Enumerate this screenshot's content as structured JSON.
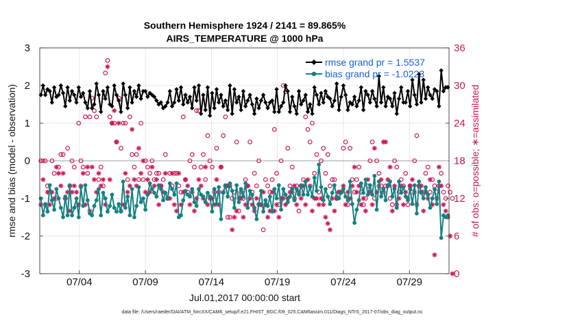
{
  "chart_data": {
    "type": "line",
    "title_line1": "Southern Hemisphere 1924 / 2141 = 89.865%",
    "title_line2": "AIRS_TEMPERATURE @ 1000 hPa",
    "xlabel": "Jul.01,2017 00:00:00 start",
    "ylabel_left": "rmse and bias (model - observation)",
    "ylabel_right": "# of obs: o=possible; ∗=assimilated",
    "ylim_left": [
      -3,
      3
    ],
    "ylim_right": [
      0,
      36
    ],
    "xlim_days": [
      1.0,
      32.0
    ],
    "yticks_left": [
      "-3",
      "-2",
      "-1",
      "0",
      "1",
      "2",
      "3"
    ],
    "yticks_right": [
      "0",
      "6",
      "12",
      "18",
      "24",
      "30",
      "36"
    ],
    "xtick_labels": [
      "07/04",
      "07/09",
      "07/14",
      "07/19",
      "07/24",
      "07/29"
    ],
    "xtick_days": [
      4,
      9,
      14,
      19,
      24,
      29
    ],
    "legend": [
      "rmse grand pr = 1.5537",
      "bias grand pr = -1.0223"
    ],
    "footer": "data file: /Users/raeder/DAI/ATM_forcXX/CAM6_setup/f.e21.FHIST_BGC.f09_025.CAM6assim.011/Diags_NTrS_2017-07/obs_diag_output.nc",
    "colors": {
      "rmse": "#000000",
      "bias": "#128282",
      "obs": "#cc1b5a",
      "zero_line": "#bdbdbd",
      "grid": "#ead6db"
    },
    "series": [
      {
        "name": "rmse",
        "values": [
          1.75,
          2.0,
          1.75,
          1.9,
          1.85,
          1.55,
          1.95,
          1.7,
          1.75,
          2.0,
          1.8,
          1.45,
          1.95,
          1.6,
          1.85,
          1.75,
          1.55,
          1.95,
          1.7,
          1.8,
          1.55,
          1.4,
          1.85,
          1.4,
          1.5,
          2.05,
          1.75,
          1.3,
          1.85,
          1.65,
          1.95,
          1.5,
          1.45,
          2.0,
          1.75,
          1.6,
          1.3,
          2.05,
          1.75,
          1.4,
          1.95,
          1.55,
          1.85,
          1.7,
          2.0,
          1.65,
          1.85,
          1.85,
          1.7,
          1.8,
          1.75,
          1.7,
          1.6,
          1.5,
          1.55,
          1.4,
          1.45,
          1.55,
          1.85,
          1.45,
          1.55,
          1.9,
          1.6,
          1.95,
          1.5,
          1.75,
          1.55,
          1.7,
          1.4,
          1.95,
          1.6,
          2.0,
          1.25,
          1.75,
          1.35,
          1.95,
          1.2,
          1.8,
          1.4,
          1.9,
          1.55,
          1.75,
          1.45,
          1.6,
          1.35,
          2.0,
          1.25,
          1.9,
          1.55,
          1.7,
          1.35,
          1.85,
          1.45,
          1.6,
          1.75,
          1.5,
          1.25,
          1.65,
          1.4,
          1.6,
          1.75,
          1.55,
          1.4,
          1.55,
          1.6,
          1.3,
          1.9,
          1.3,
          1.45,
          1.55,
          2.0,
          1.85,
          1.3,
          1.7,
          1.45,
          1.25,
          1.85,
          1.5,
          1.6,
          1.75,
          1.3,
          1.5,
          1.25,
          1.95,
          1.75,
          1.5,
          1.8,
          1.55,
          1.85,
          1.7,
          1.65,
          1.45,
          1.6,
          2.05,
          1.35,
          1.7,
          2.0,
          1.75,
          1.35,
          1.55,
          1.5,
          1.7,
          1.45,
          1.6,
          1.95,
          1.35,
          1.85,
          1.75,
          1.55,
          1.85,
          1.65,
          1.45,
          2.25,
          1.55,
          1.95,
          1.45,
          1.7,
          1.65,
          1.45,
          1.8,
          1.25,
          1.65,
          1.95,
          1.55,
          1.55,
          1.85,
          1.45,
          2.15,
          1.75,
          1.5,
          2.3,
          1.55,
          2.15,
          1.65,
          1.95,
          1.75,
          1.65,
          1.9,
          1.85,
          1.45,
          2.4,
          1.85,
          1.95,
          1.95
        ]
      },
      {
        "name": "bias",
        "values": [
          -1.0,
          -1.45,
          -1.15,
          -1.35,
          -0.65,
          -1.05,
          -1.3,
          -0.75,
          -1.0,
          -1.25,
          -1.5,
          -0.95,
          -1.45,
          -0.65,
          -1.45,
          -1.25,
          -1.0,
          -1.5,
          -0.7,
          -1.2,
          -0.65,
          -1.05,
          -1.4,
          -1.45,
          -1.2,
          -1.05,
          -0.75,
          -1.45,
          -0.85,
          -1.0,
          -1.35,
          -1.2,
          -0.9,
          -1.25,
          -1.35,
          -1.15,
          -1.35,
          -0.55,
          -1.25,
          -0.95,
          -1.45,
          -0.75,
          -1.5,
          -1.2,
          -0.7,
          -1.1,
          -1.0,
          -1.3,
          -0.9,
          -0.6,
          -0.75,
          -0.85,
          -0.95,
          -0.65,
          -0.75,
          -1.05,
          -0.85,
          -1.0,
          -0.6,
          -0.75,
          -0.9,
          -0.6,
          -1.5,
          -1.45,
          -1.05,
          -0.8,
          -0.9,
          -0.95,
          -0.75,
          -1.1,
          -1.2,
          -0.75,
          -0.9,
          -0.95,
          -1.1,
          -0.85,
          -0.95,
          -1.35,
          -0.75,
          -1.15,
          -0.7,
          -1.55,
          -0.85,
          -0.65,
          -0.95,
          -0.6,
          -0.8,
          -1.25,
          -0.65,
          -1.1,
          -0.75,
          -0.95,
          -0.6,
          -1.25,
          -0.8,
          -0.9,
          -1.25,
          -1.55,
          -1.15,
          -0.8,
          -1.35,
          -1.05,
          -1.2,
          -0.95,
          -1.35,
          -0.75,
          -1.0,
          -0.65,
          -1.3,
          -0.75,
          -0.9,
          -1.1,
          -0.95,
          -0.75,
          -1.05,
          -0.75,
          -0.9,
          -0.65,
          -0.9,
          -0.55,
          -0.9,
          -0.7,
          -0.95,
          -0.45,
          -0.8,
          -0.1,
          -0.7,
          -1.05,
          -0.75,
          -0.95,
          -1.15,
          -0.85,
          -0.65,
          -0.95,
          -1.0,
          -0.85,
          -0.75,
          -0.95,
          -1.05,
          -0.55,
          -1.15,
          -1.65,
          -1.3,
          -1.05,
          -0.6,
          -0.85,
          -0.5,
          -0.9,
          -0.65,
          -0.9,
          -0.4,
          -1.3,
          -0.55,
          -0.95,
          -0.75,
          -1.05,
          -0.65,
          -0.55,
          -0.95,
          -0.75,
          -1.25,
          -0.55,
          -0.85,
          -0.7,
          -0.95,
          -1.05,
          -0.75,
          -1.15,
          -0.65,
          -1.4,
          -0.55,
          -0.85,
          -1.0,
          -0.7,
          -0.9,
          -1.25,
          -1.0,
          -0.75,
          -1.15,
          -0.55,
          -2.05,
          -1.45,
          -1.5,
          -1.45
        ]
      },
      {
        "name": "obs_possible",
        "values": [
          18,
          18,
          18,
          14,
          13,
          18,
          16,
          12,
          17,
          19,
          19,
          12,
          20,
          14,
          18,
          17,
          11,
          24,
          18,
          17,
          25,
          16,
          25,
          28,
          26,
          25,
          15,
          17,
          14,
          32,
          34,
          25,
          24,
          24,
          21,
          28,
          20,
          24,
          24,
          15,
          25,
          19,
          17,
          19,
          15,
          24,
          15,
          18,
          17,
          16,
          18,
          15,
          16,
          16,
          14,
          15,
          19,
          12,
          16,
          14,
          16,
          16,
          14,
          13,
          25,
          15,
          13,
          18,
          19,
          17,
          26,
          26,
          17,
          19,
          15,
          22,
          18,
          17,
          13,
          20,
          13,
          17,
          22,
          25,
          9,
          9,
          12,
          13,
          21,
          10,
          13,
          12,
          15,
          14,
          21,
          13,
          16,
          14,
          18,
          11,
          7,
          15,
          14,
          13,
          15,
          23,
          16,
          11,
          18,
          30,
          29,
          20,
          14,
          17,
          12,
          14,
          10,
          14,
          15,
          25,
          23,
          21,
          24,
          16,
          19,
          13,
          18,
          20,
          16,
          19,
          14,
          15,
          15,
          12,
          13,
          13,
          20,
          21,
          11,
          20,
          15,
          13,
          15,
          17,
          13,
          11,
          12,
          14,
          18,
          21,
          12,
          18,
          16,
          14,
          13,
          14,
          14,
          12,
          11,
          18,
          17,
          13,
          15,
          14,
          16,
          11,
          14,
          13,
          18,
          22,
          14,
          13,
          13,
          16,
          17,
          13,
          15,
          14,
          13,
          14,
          16,
          13,
          12,
          14,
          13,
          12
        ]
      },
      {
        "name": "obs_assimilated",
        "values": [
          11,
          15,
          11,
          13,
          11,
          13,
          12,
          17,
          16,
          14,
          16,
          12,
          13,
          10,
          13,
          14,
          13,
          11,
          14,
          16,
          11,
          17,
          10,
          17,
          15,
          13,
          16,
          14,
          15,
          11,
          33,
          15,
          24,
          26,
          21,
          24,
          10,
          11,
          16,
          13,
          14,
          23,
          15,
          14,
          20,
          16,
          18,
          13,
          15,
          13,
          17,
          14,
          15,
          11,
          14,
          13,
          16,
          12,
          12,
          16,
          11,
          10,
          16,
          11,
          13,
          15,
          14,
          11,
          13,
          10,
          12,
          15,
          14,
          12,
          17,
          11,
          12,
          12,
          11,
          15,
          11,
          17,
          13,
          14,
          14,
          14,
          7,
          9,
          10,
          12,
          12,
          9,
          11,
          14,
          12,
          11,
          10,
          12,
          11,
          11,
          13,
          11,
          9,
          10,
          13,
          10,
          11,
          9,
          12,
          12,
          11,
          12,
          13,
          13,
          14,
          11,
          13,
          12,
          14,
          11,
          15,
          14,
          10,
          12,
          12,
          11,
          12,
          11,
          9,
          8,
          7,
          12,
          10,
          12,
          13,
          13,
          14,
          11,
          13,
          12,
          14,
          17,
          13,
          14,
          11,
          12,
          10,
          15,
          13,
          11,
          20,
          13,
          14,
          15,
          21,
          21,
          15,
          17,
          10,
          14,
          11,
          12,
          14,
          11,
          13,
          12,
          14,
          15,
          13,
          11,
          14,
          14,
          10,
          13,
          12,
          15,
          11,
          3,
          12,
          17,
          14,
          11,
          10,
          9,
          6,
          0
        ]
      }
    ]
  }
}
